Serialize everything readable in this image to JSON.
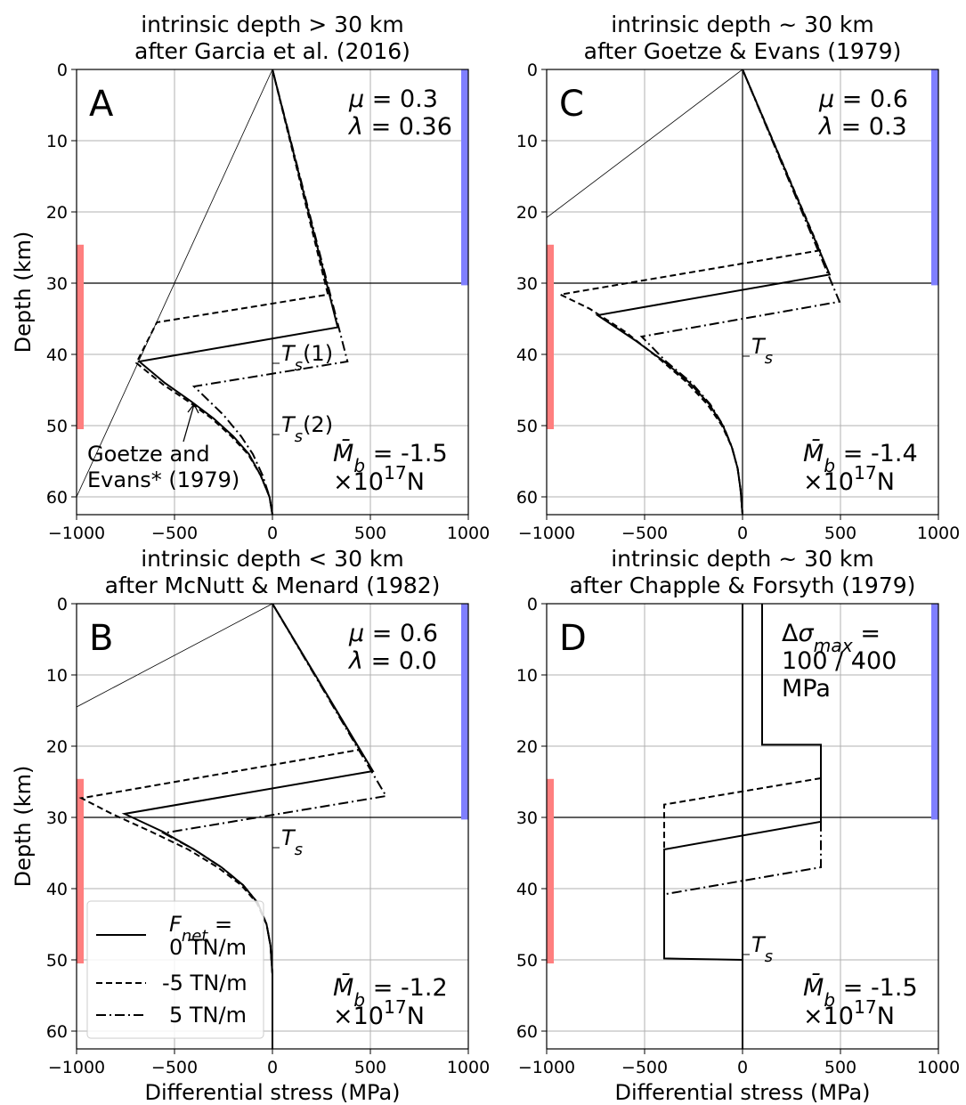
{
  "chart_data": [
    {
      "id": "A",
      "type": "line",
      "letter": "A",
      "title": [
        "intrinsic depth > 30 km",
        "after Garcia et al. (2016)"
      ],
      "xlabel": "",
      "ylabel": "Depth (km)",
      "xlim": [
        -1000,
        1000
      ],
      "ylim": [
        62.5,
        0
      ],
      "grid": true,
      "xticks": [
        -1000,
        -500,
        0,
        500,
        1000
      ],
      "yticks": [
        0,
        10,
        20,
        30,
        40,
        50,
        60
      ],
      "params": [
        "μ = 0.3",
        "λ = 0.36"
      ],
      "moment": [
        "M̄b = -1.5",
        "×10¹⁷N"
      ],
      "ts_labels": [
        {
          "text": "Ts(1)",
          "x": 0,
          "y": 41
        },
        {
          "text": "Ts(2)",
          "x": 0,
          "y": 51
        }
      ],
      "annotation": {
        "lines": [
          "Goetze and",
          "Evans* (1979)"
        ],
        "arrow_to": [
          -400,
          47
        ]
      },
      "thin_line": [
        [
          0,
          0
        ],
        [
          -1000,
          60
        ]
      ],
      "red_bar": [
        24.6,
        50.5
      ],
      "blue_bar": [
        0,
        30.3
      ],
      "series": [
        {
          "name": "0 TN/m",
          "style": "solid",
          "points": [
            [
              0,
              0
            ],
            [
              333,
              36.2
            ],
            [
              -680,
              41
            ],
            [
              -550,
              44
            ],
            [
              -420,
              46.5
            ],
            [
              -300,
              49
            ],
            [
              -200,
              51.5
            ],
            [
              -120,
              54
            ],
            [
              -60,
              57
            ],
            [
              -15,
              60
            ],
            [
              0,
              62.5
            ]
          ]
        },
        {
          "name": "-5 TN/m",
          "style": "dashed",
          "points": [
            [
              0,
              0
            ],
            [
              283,
              31.6
            ],
            [
              -590,
              35.5
            ],
            [
              -695,
              41.2
            ],
            [
              -560,
              44.2
            ],
            [
              -430,
              46.6
            ],
            [
              -310,
              49
            ],
            [
              -210,
              51.5
            ],
            [
              -125,
              54
            ],
            [
              -60,
              57
            ],
            [
              -15,
              60
            ],
            [
              0,
              62.5
            ]
          ]
        },
        {
          "name": "5 TN/m",
          "style": "dashdot",
          "points": [
            [
              0,
              0
            ],
            [
              383,
              41
            ],
            [
              -400,
              44.5
            ],
            [
              -250,
              48.5
            ],
            [
              -160,
              51.5
            ],
            [
              -100,
              54
            ],
            [
              -50,
              57
            ],
            [
              -15,
              60
            ],
            [
              0,
              62.5
            ]
          ]
        }
      ]
    },
    {
      "id": "C",
      "type": "line",
      "letter": "C",
      "title": [
        "intrinsic depth ~ 30 km",
        "after Goetze & Evans (1979)"
      ],
      "xlabel": "",
      "ylabel": "",
      "xlim": [
        -1000,
        1000
      ],
      "ylim": [
        62.5,
        0
      ],
      "grid": true,
      "xticks": [
        -1000,
        -500,
        0,
        500,
        1000
      ],
      "yticks": [
        0,
        10,
        20,
        30,
        40,
        50,
        60
      ],
      "params": [
        "μ = 0.6",
        "λ = 0.3"
      ],
      "moment": [
        "M̄b = -1.4",
        "×10¹⁷N"
      ],
      "ts_labels": [
        {
          "text": "Ts",
          "x": 0,
          "y": 40
        }
      ],
      "thin_line": [
        [
          0,
          0
        ],
        [
          -1000,
          20.8
        ]
      ],
      "red_bar": [
        24.6,
        50.5
      ],
      "blue_bar": [
        0,
        30.3
      ],
      "series": [
        {
          "name": "0 TN/m",
          "style": "solid",
          "points": [
            [
              0,
              0
            ],
            [
              445,
              28.8
            ],
            [
              -740,
              34.5
            ],
            [
              -550,
              38
            ],
            [
              -400,
              41
            ],
            [
              -270,
              44
            ],
            [
              -170,
              47
            ],
            [
              -100,
              50
            ],
            [
              -55,
              53
            ],
            [
              -25,
              56
            ],
            [
              -10,
              59
            ],
            [
              0,
              62.5
            ]
          ]
        },
        {
          "name": "-5 TN/m",
          "style": "dashed",
          "points": [
            [
              0,
              0
            ],
            [
              395,
              25.4
            ],
            [
              -930,
              31.6
            ],
            [
              -780,
              33.6
            ],
            [
              -600,
              36.8
            ],
            [
              -430,
              40.5
            ],
            [
              -290,
              43.8
            ],
            [
              -180,
              47
            ],
            [
              -105,
              50
            ],
            [
              -55,
              53
            ],
            [
              -25,
              56
            ],
            [
              -10,
              59
            ],
            [
              0,
              62.5
            ]
          ]
        },
        {
          "name": "5 TN/m",
          "style": "dashdot",
          "points": [
            [
              0,
              0
            ],
            [
              495,
              32.6
            ],
            [
              -515,
              37.5
            ],
            [
              -390,
              41
            ],
            [
              -260,
              44
            ],
            [
              -165,
              47
            ],
            [
              -98,
              50
            ],
            [
              -54,
              53
            ],
            [
              -25,
              56
            ],
            [
              -10,
              59
            ],
            [
              0,
              62.5
            ]
          ]
        }
      ]
    },
    {
      "id": "B",
      "type": "line",
      "letter": "B",
      "title": [
        "intrinsic depth < 30 km",
        "after McNutt & Menard (1982)"
      ],
      "xlabel": "Differential stress (MPa)",
      "ylabel": "Depth (km)",
      "xlim": [
        -1000,
        1000
      ],
      "ylim": [
        62.5,
        0
      ],
      "grid": true,
      "xticks": [
        -1000,
        -500,
        0,
        500,
        1000
      ],
      "yticks": [
        0,
        10,
        20,
        30,
        40,
        50,
        60
      ],
      "params": [
        "μ = 0.6",
        "λ = 0.0"
      ],
      "moment": [
        "M̄b = -1.2",
        "×10¹⁷N"
      ],
      "ts_labels": [
        {
          "text": "Ts",
          "x": 0,
          "y": 34
        }
      ],
      "thin_line": [
        [
          0,
          0
        ],
        [
          -1000,
          14.5
        ]
      ],
      "red_bar": [
        24.6,
        50.5
      ],
      "blue_bar": [
        0,
        30.3
      ],
      "legend": {
        "title": "Fnet =",
        "entries": [
          "0 TN/m",
          "-5 TN/m",
          "5 TN/m"
        ],
        "position": "lower-left"
      },
      "series": [
        {
          "name": "0 TN/m",
          "style": "solid",
          "points": [
            [
              0,
              0
            ],
            [
              513,
              23.5
            ],
            [
              -755,
              29.5
            ],
            [
              -560,
              32
            ],
            [
              -400,
              34.5
            ],
            [
              -260,
              37
            ],
            [
              -150,
              39.5
            ],
            [
              -75,
              42
            ],
            [
              -30,
              45
            ],
            [
              -10,
              48
            ],
            [
              0,
              52
            ],
            [
              0,
              62.5
            ]
          ]
        },
        {
          "name": "-5 TN/m",
          "style": "dashed",
          "points": [
            [
              0,
              0
            ],
            [
              445,
              20.5
            ],
            [
              -975,
              27.3
            ],
            [
              -820,
              29.5
            ],
            [
              -620,
              32
            ],
            [
              -430,
              34.5
            ],
            [
              -280,
              37
            ],
            [
              -160,
              39.5
            ],
            [
              -80,
              42
            ],
            [
              -30,
              45
            ],
            [
              -10,
              48
            ],
            [
              0,
              52
            ],
            [
              0,
              62.5
            ]
          ]
        },
        {
          "name": "5 TN/m",
          "style": "dashdot",
          "points": [
            [
              0,
              0
            ],
            [
              580,
              27
            ],
            [
              -555,
              32.2
            ],
            [
              -400,
              34.5
            ],
            [
              -260,
              37
            ],
            [
              -150,
              39.5
            ],
            [
              -75,
              42
            ],
            [
              -30,
              45
            ],
            [
              -10,
              48
            ],
            [
              0,
              52
            ],
            [
              0,
              62.5
            ]
          ]
        }
      ]
    },
    {
      "id": "D",
      "type": "line",
      "letter": "D",
      "title": [
        "intrinsic depth ~ 30 km",
        "after Chapple & Forsyth (1979)"
      ],
      "xlabel": "Differential stress (MPa)",
      "ylabel": "",
      "xlim": [
        -1000,
        1000
      ],
      "ylim": [
        62.5,
        0
      ],
      "grid": true,
      "xticks": [
        -1000,
        -500,
        0,
        500,
        1000
      ],
      "yticks": [
        0,
        10,
        20,
        30,
        40,
        50,
        60
      ],
      "params": [
        "Δσmax =",
        "100 / 400",
        "MPa"
      ],
      "moment": [
        "M̄b = -1.5",
        "×10¹⁷N"
      ],
      "ts_labels": [
        {
          "text": "Ts",
          "x": 0,
          "y": 49
        }
      ],
      "red_bar": [
        24.6,
        50.5
      ],
      "blue_bar": [
        0,
        30.3
      ],
      "series": [
        {
          "name": "0 TN/m",
          "style": "solid",
          "points": [
            [
              100,
              0
            ],
            [
              100,
              19.8
            ],
            [
              400,
              19.8
            ],
            [
              400,
              30.6
            ],
            [
              -400,
              34.5
            ],
            [
              -400,
              49.8
            ],
            [
              0,
              50
            ],
            [
              0,
              62.5
            ]
          ]
        },
        {
          "name": "-5 TN/m",
          "style": "dashed",
          "points": [
            [
              400,
              24.5
            ],
            [
              -400,
              28.2
            ],
            [
              -400,
              49.8
            ]
          ]
        },
        {
          "name": "5 TN/m",
          "style": "dashdot",
          "points": [
            [
              400,
              30.6
            ],
            [
              400,
              37
            ],
            [
              -400,
              40.8
            ],
            [
              -400,
              49.8
            ]
          ]
        },
        {
          "name": "0 TN/m",
          "style": "solid",
          "points": [
            [
              0,
              0
            ],
            [
              0,
              62.5
            ]
          ]
        }
      ]
    }
  ]
}
